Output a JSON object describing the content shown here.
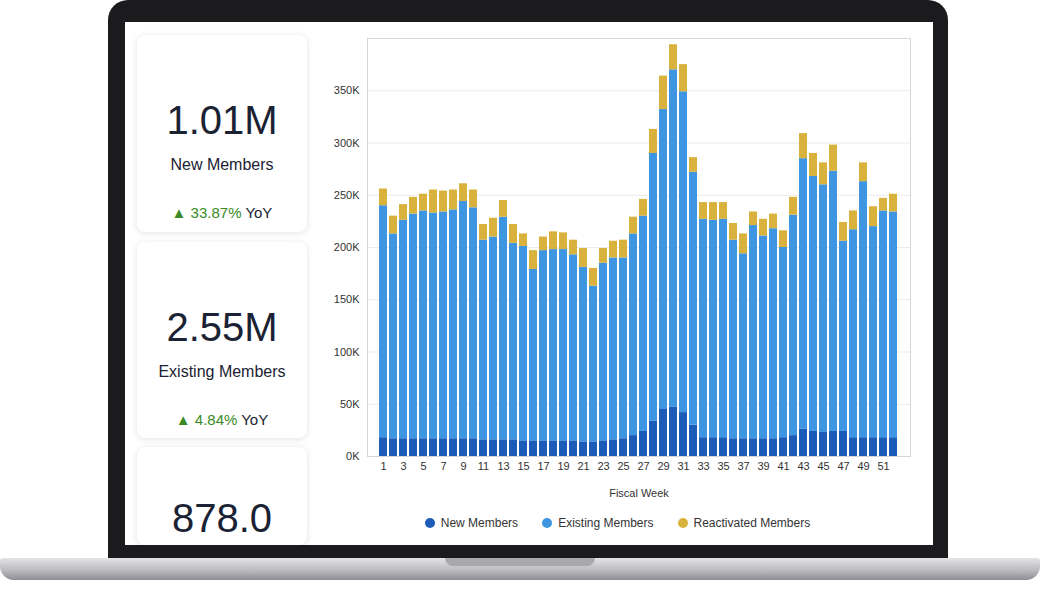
{
  "cards": [
    {
      "value": "1.01M",
      "label": "New Members",
      "change": "▲ 33.87%",
      "change_unit": "YoY"
    },
    {
      "value": "2.55M",
      "label": "Existing Members",
      "change": "▲ 4.84%",
      "change_unit": "YoY"
    },
    {
      "value": "878.0"
    }
  ],
  "chart_data": {
    "type": "bar",
    "stacked": true,
    "x_label": "Fiscal Week",
    "categories": [
      "1",
      null,
      "3",
      null,
      "5",
      null,
      "7",
      null,
      "9",
      null,
      "11",
      null,
      "13",
      null,
      "15",
      null,
      "17",
      null,
      "19",
      null,
      "21",
      null,
      "23",
      null,
      "25",
      null,
      "27",
      null,
      "29",
      null,
      "31",
      null,
      "33",
      null,
      "35",
      null,
      "37",
      null,
      "39",
      null,
      "41",
      null,
      "43",
      null,
      "45",
      null,
      "47",
      null,
      "49",
      null,
      "51",
      null
    ],
    "series": [
      {
        "name": "New Members",
        "color": "#1c5cb8",
        "values": [
          18000,
          17000,
          17000,
          17000,
          17000,
          17000,
          17000,
          17000,
          17000,
          17000,
          16000,
          16000,
          16000,
          16000,
          15000,
          15000,
          15000,
          15000,
          15000,
          15000,
          14000,
          14000,
          15000,
          16000,
          17000,
          20000,
          24000,
          34000,
          45000,
          47000,
          42000,
          30000,
          18000,
          18000,
          18000,
          17000,
          17000,
          17000,
          17000,
          17000,
          18000,
          20000,
          26000,
          24000,
          23000,
          24000,
          24000,
          18000,
          18000,
          18000,
          18000,
          18000
        ]
      },
      {
        "name": "Existing Members",
        "color": "#3e95e2",
        "values": [
          222000,
          196000,
          209000,
          215000,
          218000,
          216000,
          217000,
          219000,
          227000,
          221000,
          191000,
          194000,
          213000,
          188000,
          186000,
          164000,
          182000,
          183000,
          183000,
          178000,
          167000,
          149000,
          170000,
          174000,
          173000,
          193000,
          206000,
          256000,
          287000,
          323000,
          307000,
          242000,
          209000,
          208000,
          209000,
          190000,
          177000,
          204000,
          194000,
          201000,
          182000,
          211000,
          259000,
          244000,
          237000,
          249000,
          182000,
          199000,
          245000,
          202000,
          217000,
          216000
        ]
      },
      {
        "name": "Reactivated Members",
        "color": "#d8b23c",
        "values": [
          16000,
          17000,
          15000,
          16000,
          16000,
          22000,
          20000,
          19000,
          17000,
          17000,
          15000,
          18000,
          16000,
          18000,
          12000,
          18000,
          13000,
          17000,
          16000,
          14000,
          18000,
          17000,
          14000,
          16000,
          17000,
          16000,
          16000,
          23000,
          32000,
          24000,
          26000,
          14000,
          16000,
          17000,
          16000,
          16000,
          19000,
          13000,
          16000,
          14000,
          16000,
          17000,
          24000,
          22000,
          21000,
          25000,
          18000,
          18000,
          18000,
          19000,
          12000,
          17000
        ]
      }
    ],
    "ylim": [
      0,
      400000
    ],
    "yticks": [
      {
        "value": 0,
        "label": "0K"
      },
      {
        "value": 50000,
        "label": "50K"
      },
      {
        "value": 100000,
        "label": "100K"
      },
      {
        "value": 150000,
        "label": "150K"
      },
      {
        "value": 200000,
        "label": "200K"
      },
      {
        "value": 250000,
        "label": "250K"
      },
      {
        "value": 300000,
        "label": "300K"
      },
      {
        "value": 350000,
        "label": "350K"
      }
    ],
    "grid": true,
    "legend": "bottom"
  }
}
